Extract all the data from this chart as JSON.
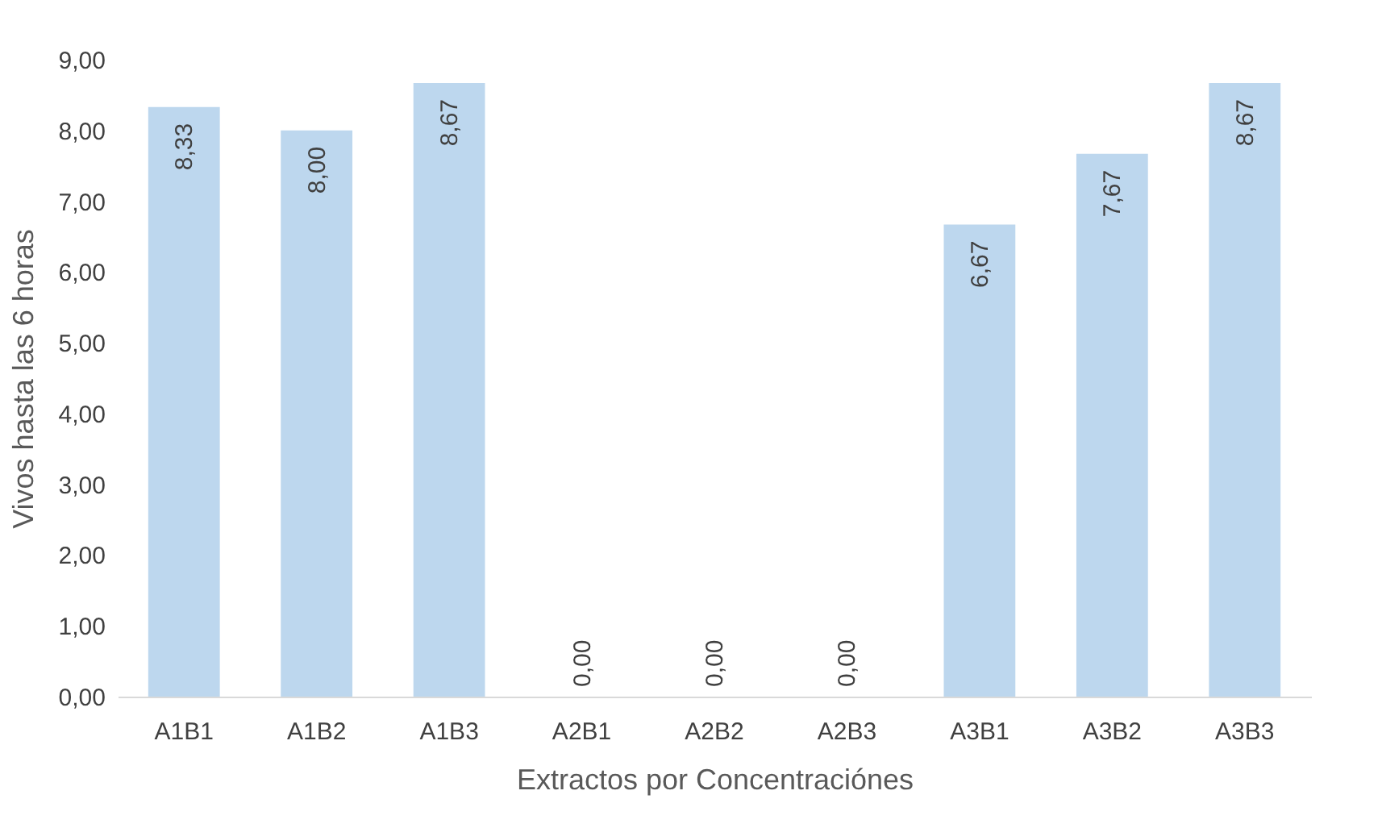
{
  "chart_data": {
    "type": "bar",
    "xlabel": "Extractos por Concentraciónes",
    "ylabel": "Vivos hasta las 6 horas",
    "categories": [
      "A1B1",
      "A1B2",
      "A1B3",
      "A2B1",
      "A2B2",
      "A2B3",
      "A3B1",
      "A3B2",
      "A3B3"
    ],
    "values": [
      8.33,
      8.0,
      8.67,
      0,
      0,
      0,
      6.67,
      7.67,
      8.67
    ],
    "value_labels": [
      "8,33",
      "8,00",
      "8,67",
      "0,00",
      "0,00",
      "0,00",
      "6,67",
      "7,67",
      "8,67"
    ],
    "color": "#bdd7ee",
    "ylim": [
      0,
      9
    ],
    "yticks": [
      {
        "value": 0,
        "label": "0,00"
      },
      {
        "value": 1,
        "label": "1,00"
      },
      {
        "value": 2,
        "label": "2,00"
      },
      {
        "value": 3,
        "label": "3,00"
      },
      {
        "value": 4,
        "label": "4,00"
      },
      {
        "value": 5,
        "label": "5,00"
      },
      {
        "value": 6,
        "label": "6,00"
      },
      {
        "value": 7,
        "label": "7,00"
      },
      {
        "value": 8,
        "label": "8,00"
      },
      {
        "value": 9,
        "label": "9,00"
      }
    ]
  }
}
